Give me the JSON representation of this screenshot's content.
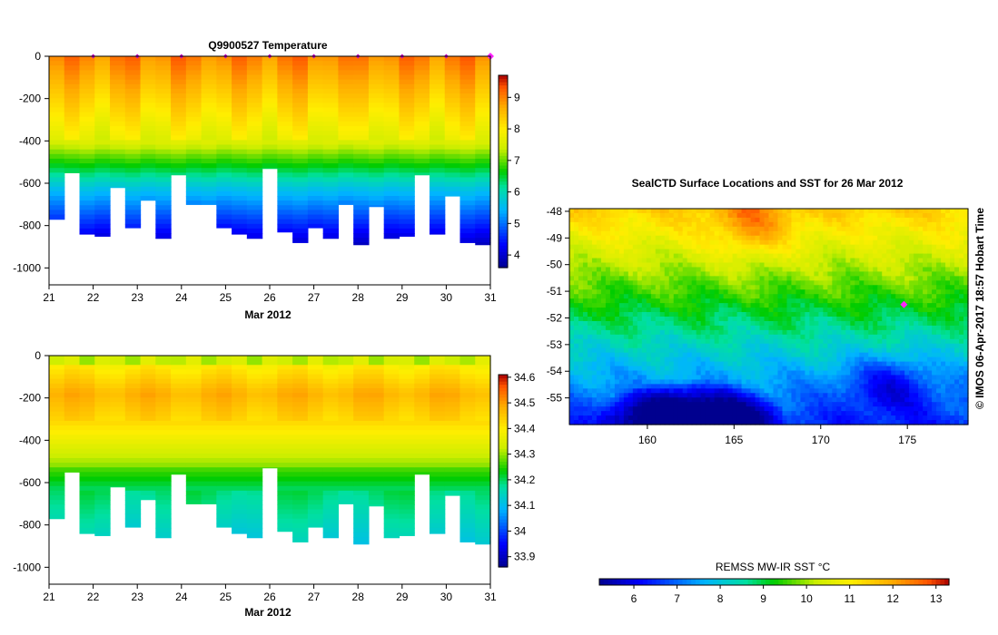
{
  "chart_data": [
    {
      "id": "temperature",
      "type": "heatmap",
      "title": "Q9900527  Temperature",
      "xlabel": "Mar 2012",
      "ylabel": "",
      "x_ticks": [
        "21",
        "22",
        "23",
        "24",
        "25",
        "26",
        "27",
        "28",
        "29",
        "30",
        "31"
      ],
      "xlim": [
        21,
        31
      ],
      "y_ticks": [
        "0",
        "-200",
        "-400",
        "-600",
        "-800",
        "-1000"
      ],
      "y_tick_values": [
        0,
        -200,
        -400,
        -600,
        -800,
        -1000
      ],
      "ylim": [
        -1080,
        0
      ],
      "colorbar": {
        "min": 3.6,
        "max": 9.7,
        "ticks": [
          "4",
          "5",
          "6",
          "7",
          "8",
          "9"
        ],
        "tick_values": [
          4,
          5,
          6,
          7,
          8,
          9
        ]
      },
      "profile_markers": [
        22,
        23,
        24,
        25,
        26,
        27,
        28,
        29,
        30,
        31
      ],
      "highlight_marker": 31,
      "profile_depths": [
        -770,
        -550,
        -840,
        -850,
        -620,
        -810,
        -680,
        -860,
        -560,
        -700,
        -700,
        -810,
        -840,
        -860,
        -530,
        -830,
        -880,
        -810,
        -860,
        -700,
        -890,
        -710,
        -860,
        -850,
        -560,
        -840,
        -660,
        -880,
        -890
      ]
    },
    {
      "id": "salinity",
      "type": "heatmap",
      "title": "",
      "xlabel": "Mar 2012",
      "ylabel": "",
      "x_ticks": [
        "21",
        "22",
        "23",
        "24",
        "25",
        "26",
        "27",
        "28",
        "29",
        "30",
        "31"
      ],
      "xlim": [
        21,
        31
      ],
      "y_ticks": [
        "0",
        "-200",
        "-400",
        "-600",
        "-800",
        "-1000"
      ],
      "y_tick_values": [
        0,
        -200,
        -400,
        -600,
        -800,
        -1000
      ],
      "ylim": [
        -1080,
        0
      ],
      "colorbar": {
        "min": 33.86,
        "max": 34.61,
        "ticks": [
          "33.9",
          "34",
          "34.1",
          "34.2",
          "34.3",
          "34.4",
          "34.5",
          "34.6"
        ],
        "tick_values": [
          33.9,
          34.0,
          34.1,
          34.2,
          34.3,
          34.4,
          34.5,
          34.6
        ]
      }
    },
    {
      "id": "sst_map",
      "type": "heatmap",
      "title": "SealCTD Surface Locations and SST for 26 Mar 2012",
      "x_ticks": [
        "160",
        "165",
        "170",
        "175"
      ],
      "x_tick_values": [
        160,
        165,
        170,
        175
      ],
      "xlim": [
        155.5,
        178.5
      ],
      "y_ticks": [
        "-48",
        "-49",
        "-50",
        "-51",
        "-52",
        "-53",
        "-54",
        "-55"
      ],
      "y_tick_values": [
        -48,
        -49,
        -50,
        -51,
        -52,
        -53,
        -54,
        -55
      ],
      "ylim": [
        -56,
        -47.9
      ],
      "highlight_location": {
        "lon": 174.8,
        "lat": -51.5
      },
      "colorbar": {
        "label": "REMSS MW-IR SST °C",
        "min": 5.2,
        "max": 13.3,
        "ticks": [
          "6",
          "7",
          "8",
          "9",
          "10",
          "11",
          "12",
          "13"
        ],
        "tick_values": [
          6,
          7,
          8,
          9,
          10,
          11,
          12,
          13
        ]
      }
    }
  ],
  "credit": "© IMOS 06-Apr-2017 18:57 Hobart Time",
  "colors": {
    "marker": "#c800c8",
    "highlight": "#ff22ff",
    "axis": "#000000"
  }
}
